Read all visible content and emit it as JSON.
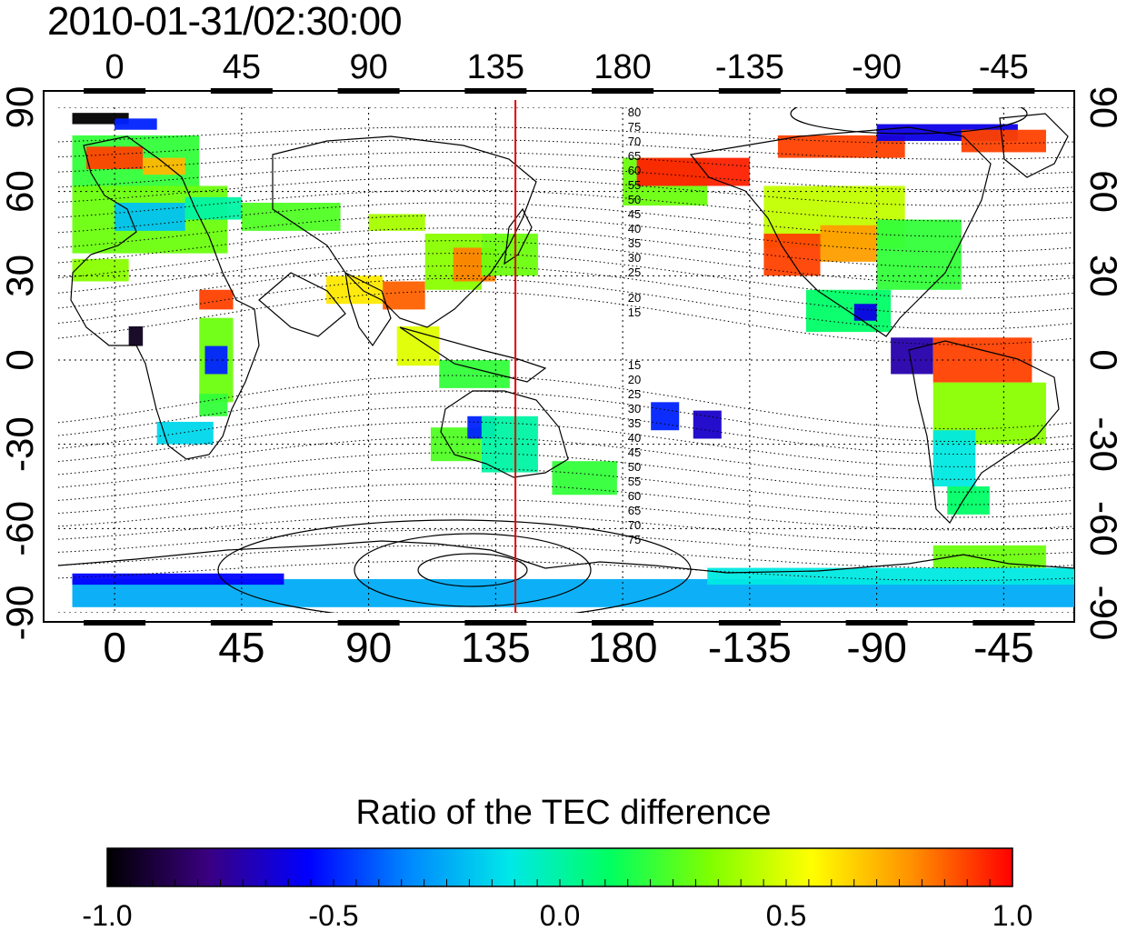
{
  "title": "2010-01-31/02:30:00",
  "map": {
    "lon_ticks": [
      "0",
      "45",
      "90",
      "135",
      "180",
      "-135",
      "-90",
      "-45"
    ],
    "lat_ticks": [
      "90",
      "60",
      "30",
      "0",
      "-30",
      "-60",
      "-90"
    ],
    "contour_labels_north": [
      "80",
      "75",
      "70",
      "65",
      "60",
      "55",
      "50",
      "45",
      "40",
      "35",
      "30",
      "25",
      "20",
      "15"
    ],
    "contour_labels_south": [
      "15",
      "20",
      "25",
      "30",
      "35",
      "40",
      "45",
      "50",
      "55",
      "60",
      "65",
      "70",
      "75"
    ],
    "meridian_marker_lon": 142,
    "marker_color": "#e00000"
  },
  "colorbar": {
    "label": "Ratio of the TEC difference",
    "ticks": [
      "-1.0",
      "-0.5",
      "0.0",
      "0.5",
      "1.0"
    ],
    "range": [
      -1.0,
      1.0
    ],
    "colors": [
      "#000000",
      "#3a0080",
      "#0000ff",
      "#0088ff",
      "#00e8e8",
      "#00ff60",
      "#80ff00",
      "#ffff00",
      "#ff9000",
      "#ff0000"
    ]
  },
  "chart_data": {
    "type": "heatmap",
    "title": "2010-01-31/02:30:00",
    "xlabel": "",
    "ylabel": "",
    "xlim": [
      -20,
      340
    ],
    "ylim": [
      -90,
      90
    ],
    "colorbar_label": "Ratio of the TEC difference",
    "color_range": [
      -1.0,
      1.0
    ],
    "cells": [
      {
        "lon": -15,
        "lat": 84,
        "lon2": 5,
        "lat2": 88,
        "v": -1.0
      },
      {
        "lon": 0,
        "lat": 82,
        "lon2": 15,
        "lat2": 86,
        "v": -0.5
      },
      {
        "lon": -15,
        "lat": 60,
        "lon2": 30,
        "lat2": 80,
        "v": 0.2
      },
      {
        "lon": -10,
        "lat": 68,
        "lon2": 10,
        "lat2": 76,
        "v": 0.9
      },
      {
        "lon": 10,
        "lat": 66,
        "lon2": 25,
        "lat2": 72,
        "v": 0.7
      },
      {
        "lon": -15,
        "lat": 38,
        "lon2": 40,
        "lat2": 62,
        "v": 0.3
      },
      {
        "lon": 0,
        "lat": 46,
        "lon2": 25,
        "lat2": 56,
        "v": -0.2
      },
      {
        "lon": 25,
        "lat": 50,
        "lon2": 45,
        "lat2": 58,
        "v": 0.0
      },
      {
        "lon": -15,
        "lat": 28,
        "lon2": 5,
        "lat2": 36,
        "v": 0.35
      },
      {
        "lon": 45,
        "lat": 46,
        "lon2": 80,
        "lat2": 56,
        "v": 0.25
      },
      {
        "lon": 90,
        "lat": 46,
        "lon2": 110,
        "lat2": 52,
        "v": 0.4
      },
      {
        "lon": 75,
        "lat": 20,
        "lon2": 95,
        "lat2": 30,
        "v": 0.6
      },
      {
        "lon": 95,
        "lat": 18,
        "lon2": 110,
        "lat2": 28,
        "v": 0.85
      },
      {
        "lon": 110,
        "lat": 25,
        "lon2": 130,
        "lat2": 45,
        "v": 0.35
      },
      {
        "lon": 120,
        "lat": 28,
        "lon2": 135,
        "lat2": 40,
        "v": 0.8
      },
      {
        "lon": 130,
        "lat": 30,
        "lon2": 150,
        "lat2": 45,
        "v": 0.3
      },
      {
        "lon": 100,
        "lat": -2,
        "lon2": 115,
        "lat2": 12,
        "v": 0.5
      },
      {
        "lon": 115,
        "lat": -10,
        "lon2": 140,
        "lat2": 0,
        "v": 0.2
      },
      {
        "lon": 30,
        "lat": 18,
        "lon2": 42,
        "lat2": 25,
        "v": 0.9
      },
      {
        "lon": 30,
        "lat": -15,
        "lon2": 42,
        "lat2": 15,
        "v": 0.3
      },
      {
        "lon": 32,
        "lat": -5,
        "lon2": 40,
        "lat2": 5,
        "v": -0.5
      },
      {
        "lon": 5,
        "lat": 5,
        "lon2": 10,
        "lat2": 12,
        "v": -0.95
      },
      {
        "lon": 15,
        "lat": -30,
        "lon2": 35,
        "lat2": -22,
        "v": -0.15
      },
      {
        "lon": 30,
        "lat": -20,
        "lon2": 40,
        "lat2": -12,
        "v": 0.2
      },
      {
        "lon": 112,
        "lat": -36,
        "lon2": 130,
        "lat2": -24,
        "v": 0.25
      },
      {
        "lon": 125,
        "lat": -28,
        "lon2": 135,
        "lat2": -20,
        "v": -0.5
      },
      {
        "lon": 130,
        "lat": -40,
        "lon2": 150,
        "lat2": -20,
        "v": 0.0
      },
      {
        "lon": 155,
        "lat": -48,
        "lon2": 178,
        "lat2": -36,
        "v": 0.2
      },
      {
        "lon": 190,
        "lat": -25,
        "lon2": 200,
        "lat2": -15,
        "v": -0.5
      },
      {
        "lon": 205,
        "lat": -28,
        "lon2": 215,
        "lat2": -18,
        "v": -0.65
      },
      {
        "lon": 180,
        "lat": 55,
        "lon2": 210,
        "lat2": 72,
        "v": 0.3
      },
      {
        "lon": 185,
        "lat": 62,
        "lon2": 225,
        "lat2": 72,
        "v": 0.95
      },
      {
        "lon": 235,
        "lat": 72,
        "lon2": 280,
        "lat2": 80,
        "v": 0.9
      },
      {
        "lon": 270,
        "lat": 78,
        "lon2": 320,
        "lat2": 84,
        "v": -0.6
      },
      {
        "lon": 300,
        "lat": 74,
        "lon2": 330,
        "lat2": 82,
        "v": 0.9
      },
      {
        "lon": 230,
        "lat": 40,
        "lon2": 280,
        "lat2": 62,
        "v": 0.45
      },
      {
        "lon": 230,
        "lat": 30,
        "lon2": 250,
        "lat2": 45,
        "v": 0.9
      },
      {
        "lon": 250,
        "lat": 35,
        "lon2": 270,
        "lat2": 48,
        "v": 0.75
      },
      {
        "lon": 270,
        "lat": 25,
        "lon2": 300,
        "lat2": 50,
        "v": 0.2
      },
      {
        "lon": 245,
        "lat": 10,
        "lon2": 275,
        "lat2": 25,
        "v": 0.1
      },
      {
        "lon": 262,
        "lat": 14,
        "lon2": 270,
        "lat2": 20,
        "v": -0.6
      },
      {
        "lon": 275,
        "lat": -5,
        "lon2": 290,
        "lat2": 8,
        "v": -0.7
      },
      {
        "lon": 290,
        "lat": -8,
        "lon2": 325,
        "lat2": 8,
        "v": 0.9
      },
      {
        "lon": 290,
        "lat": -30,
        "lon2": 330,
        "lat2": -8,
        "v": 0.35
      },
      {
        "lon": 290,
        "lat": -45,
        "lon2": 305,
        "lat2": -25,
        "v": -0.1
      },
      {
        "lon": 295,
        "lat": -55,
        "lon2": 310,
        "lat2": -45,
        "v": 0.1
      },
      {
        "lon": -15,
        "lat": -88,
        "lon2": 340,
        "lat2": -78,
        "v": -0.25
      },
      {
        "lon": -15,
        "lat": -80,
        "lon2": 60,
        "lat2": -76,
        "v": -0.55
      },
      {
        "lon": 210,
        "lat": -80,
        "lon2": 340,
        "lat2": -74,
        "v": -0.1
      },
      {
        "lon": 290,
        "lat": -74,
        "lon2": 330,
        "lat2": -66,
        "v": 0.3
      }
    ]
  }
}
